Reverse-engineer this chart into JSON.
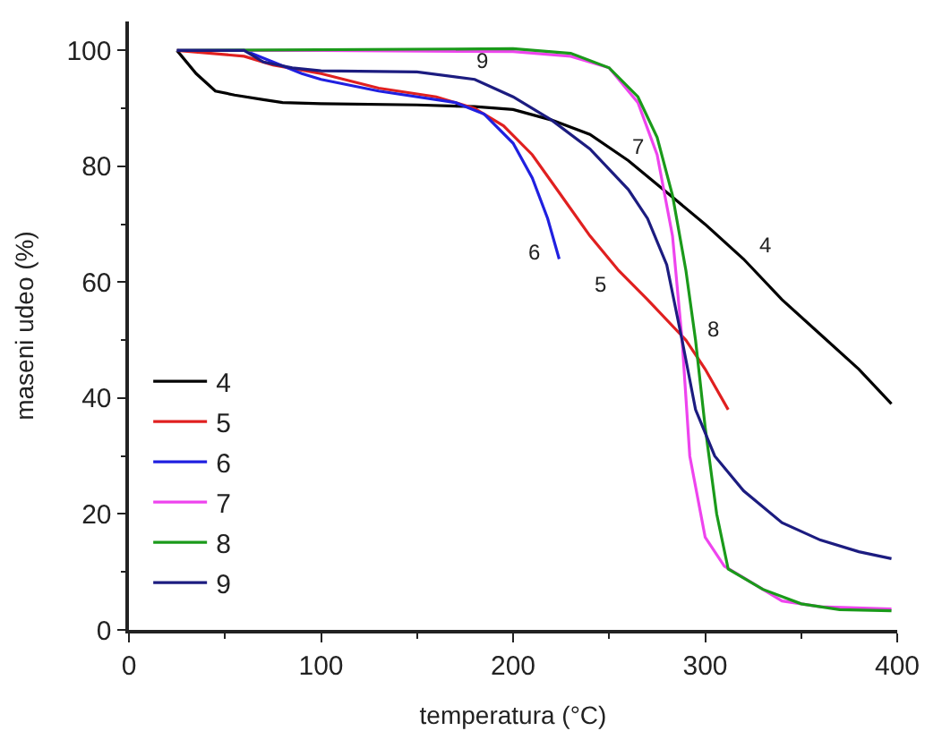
{
  "chart_data": {
    "type": "line",
    "xlabel": "temperatura (°C)",
    "ylabel": "maseni udeo (%)",
    "xlim": [
      0,
      400
    ],
    "ylim": [
      0,
      105
    ],
    "xticks": [
      0,
      100,
      200,
      300,
      400
    ],
    "yticks": [
      0,
      20,
      40,
      60,
      80,
      100
    ],
    "legend": "bottom left",
    "marker": "none",
    "line_style": "solid",
    "series": [
      {
        "name": "4",
        "color": "#000000",
        "x": [
          25,
          35,
          45,
          55,
          70,
          80,
          100,
          150,
          180,
          200,
          220,
          240,
          260,
          280,
          300,
          320,
          340,
          360,
          380,
          397
        ],
        "values": [
          100,
          96,
          93,
          92.3,
          91.5,
          91,
          90.8,
          90.6,
          90.3,
          89.8,
          88,
          85.5,
          81,
          75.5,
          70,
          64,
          57,
          51,
          45,
          39
        ]
      },
      {
        "name": "5",
        "color": "#e02020",
        "x": [
          25,
          60,
          75,
          100,
          130,
          160,
          180,
          195,
          210,
          225,
          240,
          255,
          270,
          290,
          300,
          312
        ],
        "values": [
          100,
          99,
          97.5,
          96,
          93.5,
          92,
          90,
          87,
          82,
          75,
          68,
          62,
          57,
          50,
          45,
          38
        ]
      },
      {
        "name": "6",
        "color": "#2020e0",
        "x": [
          25,
          60,
          75,
          90,
          100,
          130,
          170,
          185,
          200,
          210,
          218,
          224
        ],
        "values": [
          100,
          100,
          98,
          96,
          95,
          93,
          91,
          89,
          84,
          78,
          71,
          64
        ]
      },
      {
        "name": "7",
        "color": "#ee44ee",
        "x": [
          25,
          100,
          200,
          230,
          250,
          265,
          275,
          283,
          288,
          292,
          300,
          310,
          320,
          340,
          360,
          397
        ],
        "values": [
          100,
          100,
          99.8,
          99,
          97,
          91,
          82,
          68,
          50,
          30,
          16,
          11,
          9,
          5,
          4,
          3.6
        ]
      },
      {
        "name": "8",
        "color": "#1a9a1a",
        "x": [
          25,
          200,
          230,
          250,
          265,
          275,
          283,
          290,
          295,
          300,
          306,
          312,
          330,
          350,
          370,
          397
        ],
        "values": [
          100,
          100.3,
          99.5,
          97,
          92,
          85,
          75,
          62,
          50,
          35,
          20,
          10.5,
          7,
          4.5,
          3.5,
          3.3
        ]
      },
      {
        "name": "9",
        "color": "#1c1c80",
        "x": [
          25,
          60,
          70,
          85,
          100,
          150,
          180,
          200,
          220,
          240,
          260,
          270,
          280,
          288,
          295,
          305,
          320,
          340,
          360,
          380,
          397
        ],
        "values": [
          100,
          100,
          98,
          97,
          96.5,
          96.3,
          95,
          92,
          88,
          83,
          76,
          71,
          63,
          50,
          38,
          30,
          24,
          18.5,
          15.5,
          13.5,
          12.3
        ]
      }
    ],
    "annotations": [
      {
        "text": "4",
        "x": 320,
        "y": 64
      },
      {
        "text": "5",
        "x": 255,
        "y": 62
      },
      {
        "text": "6",
        "x": 224,
        "y": 64
      },
      {
        "text": "7",
        "x": 275,
        "y": 82
      },
      {
        "text": "8",
        "x": 295,
        "y": 50
      },
      {
        "text": "9",
        "x": 180,
        "y": 95
      }
    ]
  }
}
